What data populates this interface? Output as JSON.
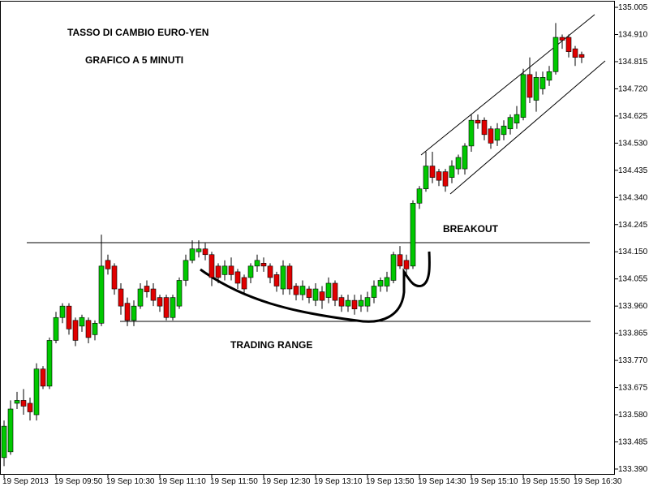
{
  "chart_data": {
    "type": "candlestick",
    "title": "TASSO DI CAMBIO EURO-YEN",
    "subtitle": "GRAFICO A 5 MINUTI",
    "annotations": [
      "BREAKOUT",
      "TRADING RANGE"
    ],
    "up_color": "#00c800",
    "down_color": "#e00000",
    "categories": [
      "19 Sep 2013",
      null,
      null,
      null,
      null,
      null,
      null,
      null,
      "19 Sep 09:50",
      null,
      null,
      null,
      null,
      null,
      null,
      null,
      "19 Sep 10:30",
      null,
      null,
      null,
      null,
      null,
      null,
      null,
      "19 Sep 11:10",
      null,
      null,
      null,
      null,
      null,
      null,
      null,
      "19 Sep 11:50",
      null,
      null,
      null,
      null,
      null,
      null,
      null,
      "19 Sep 12:30",
      null,
      null,
      null,
      null,
      null,
      null,
      null,
      "19 Sep 13:10",
      null,
      null,
      null,
      null,
      null,
      null,
      null,
      "19 Sep 13:50",
      null,
      null,
      null,
      null,
      null,
      null,
      null,
      "19 Sep 14:30",
      null,
      null,
      null,
      null,
      null,
      null,
      null,
      "19 Sep 15:10",
      null,
      null,
      null,
      null,
      null,
      null,
      null,
      "19 Sep 15:50",
      null,
      null,
      null,
      null,
      null,
      null,
      null,
      "19 Sep 16:30",
      null
    ],
    "open": [
      133.43,
      133.45,
      133.62,
      133.63,
      133.62,
      133.58,
      133.74,
      133.68,
      133.84,
      133.92,
      133.96,
      133.91,
      133.89,
      133.91,
      133.86,
      133.9,
      134.12,
      134.1,
      134.02,
      133.97,
      133.91,
      133.96,
      134.03,
      134.02,
      133.99,
      133.99,
      133.92,
      133.96,
      134.05,
      134.12,
      134.15,
      134.16,
      134.14,
      134.1,
      134.07,
      134.1,
      134.08,
      134.06,
      134.06,
      134.1,
      134.11,
      134.1,
      134.07,
      134.02,
      134.1,
      134.03,
      134.0,
      134.02,
      133.98,
      134.01,
      133.99,
      134.04,
      133.99,
      133.96,
      133.98,
      133.96,
      133.96,
      133.99,
      134.03,
      134.03,
      134.05,
      134.14,
      134.12,
      134.1,
      134.32,
      134.37,
      134.45,
      134.43,
      134.43,
      134.41,
      134.44,
      134.44,
      134.52,
      134.61,
      134.61,
      134.58,
      134.54,
      134.56,
      134.58,
      134.6,
      134.62,
      134.77,
      134.68,
      134.72,
      134.75,
      134.78,
      134.9,
      134.9,
      134.86,
      134.84
    ],
    "high": [
      133.56,
      133.63,
      133.66,
      133.67,
      133.64,
      133.76,
      133.75,
      133.85,
      133.94,
      133.97,
      133.97,
      133.92,
      133.93,
      133.92,
      133.91,
      134.21,
      134.14,
      134.11,
      134.04,
      133.99,
      133.98,
      134.04,
      134.05,
      134.04,
      134.0,
      134.0,
      134.0,
      134.06,
      134.14,
      134.19,
      134.19,
      134.18,
      134.15,
      134.11,
      134.12,
      134.13,
      134.09,
      134.07,
      134.11,
      134.14,
      134.13,
      134.11,
      134.08,
      134.12,
      134.11,
      134.04,
      134.05,
      134.03,
      134.04,
      134.03,
      134.06,
      134.05,
      134.0,
      134.0,
      134.0,
      134.0,
      134.01,
      134.05,
      134.06,
      134.08,
      134.15,
      134.17,
      134.14,
      134.33,
      134.38,
      134.5,
      134.5,
      134.44,
      134.44,
      134.47,
      134.49,
      134.53,
      134.63,
      134.63,
      134.62,
      134.59,
      134.6,
      134.61,
      134.63,
      134.66,
      134.79,
      134.83,
      134.78,
      134.78,
      134.8,
      134.95,
      134.91,
      134.91,
      134.87,
      134.85
    ],
    "low": [
      133.4,
      133.44,
      133.6,
      133.58,
      133.56,
      133.56,
      133.67,
      133.67,
      133.83,
      133.9,
      133.86,
      133.82,
      133.87,
      133.83,
      133.84,
      133.89,
      134.07,
      134.0,
      133.93,
      133.89,
      133.89,
      133.95,
      133.99,
      133.96,
      133.94,
      133.91,
      133.91,
      133.95,
      134.03,
      134.11,
      134.13,
      134.12,
      134.03,
      134.04,
      134.05,
      134.05,
      134.02,
      134.0,
      134.04,
      134.08,
      134.08,
      134.04,
      134.01,
      134.0,
      134.0,
      133.98,
      133.98,
      133.97,
      133.96,
      133.95,
      133.97,
      133.96,
      133.94,
      133.94,
      133.93,
      133.94,
      133.94,
      133.97,
      134.01,
      134.01,
      134.04,
      134.09,
      134.07,
      134.09,
      134.3,
      134.36,
      134.39,
      134.38,
      134.36,
      134.39,
      134.42,
      134.42,
      134.5,
      134.58,
      134.54,
      134.51,
      134.52,
      134.54,
      134.56,
      134.58,
      134.61,
      134.67,
      134.64,
      134.7,
      134.73,
      134.77,
      134.86,
      134.83,
      134.8,
      134.81
    ],
    "close": [
      133.54,
      133.6,
      133.63,
      133.61,
      133.59,
      133.74,
      133.68,
      133.84,
      133.92,
      133.96,
      133.88,
      133.84,
      133.92,
      133.85,
      133.9,
      134.1,
      134.09,
      134.02,
      133.96,
      133.91,
      133.96,
      134.02,
      134.01,
      133.98,
      133.96,
      133.92,
      133.99,
      134.05,
      134.12,
      134.16,
      134.16,
      134.14,
      134.06,
      134.06,
      134.1,
      134.07,
      134.04,
      134.02,
      134.1,
      134.12,
      134.1,
      134.06,
      134.03,
      134.1,
      134.02,
      134.0,
      134.03,
      133.99,
      134.02,
      133.98,
      134.04,
      133.98,
      133.96,
      133.98,
      133.95,
      133.98,
      133.99,
      134.03,
      134.05,
      134.06,
      134.14,
      134.1,
      134.09,
      134.32,
      134.37,
      134.45,
      134.41,
      134.4,
      134.38,
      134.45,
      134.48,
      134.52,
      134.61,
      134.6,
      134.56,
      134.53,
      134.58,
      134.59,
      134.62,
      134.63,
      134.77,
      134.69,
      134.76,
      134.76,
      134.78,
      134.9,
      134.89,
      134.85,
      134.83,
      134.83
    ],
    "ylim": [
      133.37,
      135.025
    ],
    "yticks": [
      135.005,
      {
        "value": 134.91,
        "label": "134.910"
      },
      134.815,
      {
        "value": 134.72,
        "label": "134.720"
      },
      134.625,
      {
        "value": 134.53,
        "label": "134.530"
      },
      134.435,
      {
        "value": 134.34,
        "label": "134.340"
      },
      134.245,
      {
        "value": 134.15,
        "label": "134.150"
      },
      134.055,
      {
        "value": 133.96,
        "label": "133.960"
      },
      133.865,
      {
        "value": 133.77,
        "label": "133.770"
      },
      133.675,
      {
        "value": 133.58,
        "label": "133.580"
      },
      133.485,
      {
        "value": 133.39,
        "label": "133.390"
      }
    ]
  }
}
